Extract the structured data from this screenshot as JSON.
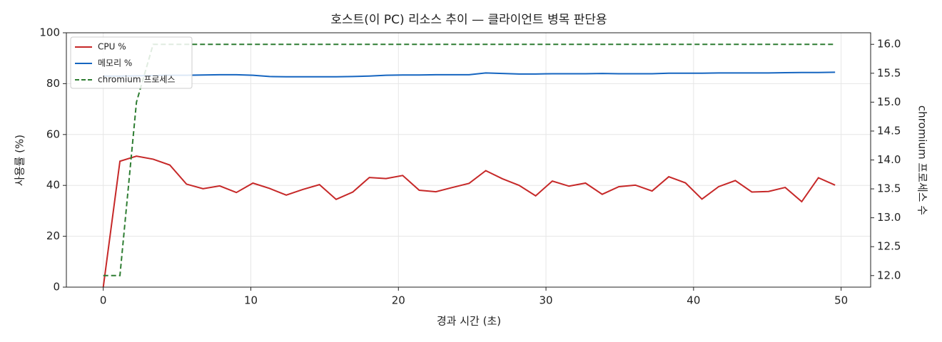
{
  "chart_data": {
    "type": "line",
    "title": "호스트(이 PC) 리소스 추이 — 클라이언트 병목 판단용",
    "x_label": "경과 시간 (초)",
    "y_label": "사용률 (%)",
    "y2_label": "chromium 프로세스 수",
    "x": [
      0,
      1.13,
      2.25,
      3.38,
      4.51,
      5.64,
      6.76,
      7.89,
      9.02,
      10.14,
      11.27,
      12.4,
      13.52,
      14.65,
      15.78,
      16.91,
      18.03,
      19.16,
      20.29,
      21.41,
      22.54,
      23.67,
      24.79,
      25.92,
      27.05,
      28.18,
      29.3,
      30.43,
      31.56,
      32.68,
      33.81,
      34.94,
      36.06,
      37.19,
      38.32,
      39.45,
      40.57,
      41.7,
      42.83,
      43.95,
      45.08,
      46.21,
      47.33,
      48.46,
      49.59
    ],
    "series": [
      {
        "name": "CPU %",
        "color": "#c62828",
        "style": "solid",
        "values": [
          0,
          49.5,
          51.5,
          50.3,
          48,
          40.5,
          38.7,
          39.8,
          37.2,
          40.9,
          38.8,
          36.2,
          38.4,
          40.3,
          34.5,
          37.4,
          43.1,
          42.7,
          43.9,
          38.1,
          37.5,
          39.2,
          40.8,
          45.8,
          42.6,
          40,
          35.9,
          41.7,
          39.7,
          40.9,
          36.5,
          39.5,
          40.1,
          37.8,
          43.4,
          41,
          34.6,
          39.5,
          41.9,
          37.4,
          37.6,
          39.2,
          33.6,
          43,
          40.1
        ]
      },
      {
        "name": "메모리 %",
        "color": "#1565c0",
        "style": "solid",
        "values": [
          83,
          83,
          83.1,
          83.2,
          83.3,
          83.3,
          83.4,
          83.5,
          83.5,
          83.3,
          82.8,
          82.7,
          82.7,
          82.7,
          82.7,
          82.8,
          83,
          83.3,
          83.4,
          83.4,
          83.5,
          83.5,
          83.5,
          84.2,
          84,
          83.8,
          83.8,
          83.9,
          83.9,
          83.9,
          84,
          83.9,
          83.9,
          83.9,
          84.1,
          84.1,
          84.1,
          84.2,
          84.2,
          84.2,
          84.2,
          84.3,
          84.4,
          84.4,
          84.5
        ]
      },
      {
        "name": "chromium 프로세스",
        "color": "#2e7d32",
        "style": "dashed",
        "axis": "y2",
        "values": [
          12,
          12,
          15,
          16,
          16,
          16,
          16,
          16,
          16,
          16,
          16,
          16,
          16,
          16,
          16,
          16,
          16,
          16,
          16,
          16,
          16,
          16,
          16,
          16,
          16,
          16,
          16,
          16,
          16,
          16,
          16,
          16,
          16,
          16,
          16,
          16,
          16,
          16,
          16,
          16,
          16,
          16,
          16,
          16,
          16
        ]
      }
    ],
    "xlim": [
      -2.5,
      52
    ],
    "xticks": [
      0,
      10,
      20,
      30,
      40,
      50
    ],
    "ylim": [
      0,
      100
    ],
    "yticks": [
      0,
      20,
      40,
      60,
      80,
      100
    ],
    "y2lim": [
      11.8,
      16.2
    ],
    "y2ticks": [
      {
        "value": 12,
        "label": "12.0"
      },
      12.5,
      {
        "value": 13,
        "label": "13.0"
      },
      13.5,
      {
        "value": 14,
        "label": "14.0"
      },
      14.5,
      {
        "value": 15,
        "label": "15.0"
      },
      15.5,
      {
        "value": 16,
        "label": "16.0"
      }
    ],
    "grid": true,
    "legend": "upper left"
  }
}
